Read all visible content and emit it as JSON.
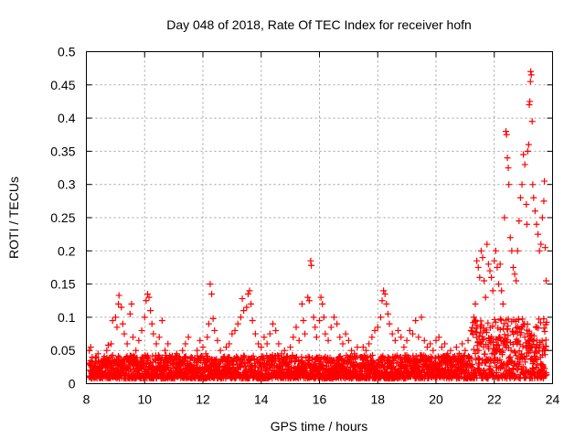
{
  "chart_data": {
    "type": "scatter",
    "title": "Day 048 of 2018, Rate Of TEC Index for receiver hofn",
    "xlabel": "GPS time / hours",
    "ylabel": "ROTI / TECUs",
    "xlim": [
      8,
      24
    ],
    "ylim": [
      0,
      0.5
    ],
    "xticks": [
      8,
      10,
      12,
      14,
      16,
      18,
      20,
      22,
      24
    ],
    "xtick_labels": [
      "8",
      "10",
      "12",
      "14",
      "16",
      "18",
      "20",
      "22",
      "24"
    ],
    "yticks": [
      0,
      0.05,
      0.1,
      0.15,
      0.2,
      0.25,
      0.3,
      0.35,
      0.4,
      0.45,
      0.5
    ],
    "ytick_labels": [
      "0",
      "0.05",
      "0.1",
      "0.15",
      "0.2",
      "0.25",
      "0.3",
      "0.35",
      "0.4",
      "0.45",
      "0.5"
    ],
    "grid": true,
    "marker": "+",
    "color": "#ff0000",
    "series": [
      {
        "name": "ROTI",
        "points": [
          [
            8.1,
            0.05
          ],
          [
            8.15,
            0.055
          ],
          [
            8.2,
            0.04
          ],
          [
            8.3,
            0.03
          ],
          [
            8.4,
            0.045
          ],
          [
            8.5,
            0.025
          ],
          [
            8.6,
            0.038
          ],
          [
            8.7,
            0.05
          ],
          [
            8.75,
            0.058
          ],
          [
            8.85,
            0.06
          ],
          [
            8.9,
            0.095
          ],
          [
            9.0,
            0.1
          ],
          [
            9.05,
            0.085
          ],
          [
            9.1,
            0.12
          ],
          [
            9.12,
            0.133
          ],
          [
            9.2,
            0.115
          ],
          [
            9.25,
            0.09
          ],
          [
            9.3,
            0.075
          ],
          [
            9.4,
            0.06
          ],
          [
            9.5,
            0.105
          ],
          [
            9.55,
            0.12
          ],
          [
            9.6,
            0.07
          ],
          [
            9.7,
            0.05
          ],
          [
            9.8,
            0.065
          ],
          [
            9.9,
            0.08
          ],
          [
            10.0,
            0.1
          ],
          [
            10.05,
            0.125
          ],
          [
            10.1,
            0.135
          ],
          [
            10.15,
            0.13
          ],
          [
            10.2,
            0.11
          ],
          [
            10.25,
            0.09
          ],
          [
            10.3,
            0.075
          ],
          [
            10.4,
            0.06
          ],
          [
            10.5,
            0.07
          ],
          [
            10.6,
            0.095
          ],
          [
            10.7,
            0.05
          ],
          [
            10.8,
            0.06
          ],
          [
            10.9,
            0.04
          ],
          [
            11.0,
            0.035
          ],
          [
            11.1,
            0.045
          ],
          [
            11.2,
            0.03
          ],
          [
            11.3,
            0.05
          ],
          [
            11.4,
            0.06
          ],
          [
            11.5,
            0.07
          ],
          [
            11.6,
            0.04
          ],
          [
            11.7,
            0.035
          ],
          [
            11.8,
            0.05
          ],
          [
            11.9,
            0.065
          ],
          [
            12.0,
            0.055
          ],
          [
            12.1,
            0.045
          ],
          [
            12.15,
            0.07
          ],
          [
            12.2,
            0.09
          ],
          [
            12.25,
            0.15
          ],
          [
            12.3,
            0.135
          ],
          [
            12.35,
            0.098
          ],
          [
            12.4,
            0.08
          ],
          [
            12.5,
            0.065
          ],
          [
            12.6,
            0.05
          ],
          [
            12.7,
            0.04
          ],
          [
            12.8,
            0.055
          ],
          [
            12.9,
            0.06
          ],
          [
            13.0,
            0.075
          ],
          [
            13.1,
            0.08
          ],
          [
            13.2,
            0.09
          ],
          [
            13.3,
            0.1
          ],
          [
            13.35,
            0.128
          ],
          [
            13.4,
            0.11
          ],
          [
            13.5,
            0.115
          ],
          [
            13.55,
            0.135
          ],
          [
            13.6,
            0.14
          ],
          [
            13.65,
            0.12
          ],
          [
            13.7,
            0.095
          ],
          [
            13.8,
            0.075
          ],
          [
            13.9,
            0.06
          ],
          [
            14.0,
            0.055
          ],
          [
            14.1,
            0.07
          ],
          [
            14.2,
            0.06
          ],
          [
            14.3,
            0.075
          ],
          [
            14.4,
            0.09
          ],
          [
            14.5,
            0.08
          ],
          [
            14.6,
            0.06
          ],
          [
            14.7,
            0.045
          ],
          [
            14.8,
            0.05
          ],
          [
            14.9,
            0.04
          ],
          [
            15.0,
            0.055
          ],
          [
            15.1,
            0.07
          ],
          [
            15.2,
            0.085
          ],
          [
            15.3,
            0.065
          ],
          [
            15.4,
            0.12
          ],
          [
            15.45,
            0.095
          ],
          [
            15.5,
            0.075
          ],
          [
            15.6,
            0.13
          ],
          [
            15.65,
            0.125
          ],
          [
            15.7,
            0.185
          ],
          [
            15.72,
            0.178
          ],
          [
            15.8,
            0.1
          ],
          [
            15.85,
            0.085
          ],
          [
            15.9,
            0.07
          ],
          [
            16.0,
            0.095
          ],
          [
            16.05,
            0.13
          ],
          [
            16.1,
            0.12
          ],
          [
            16.15,
            0.1
          ],
          [
            16.2,
            0.075
          ],
          [
            16.3,
            0.065
          ],
          [
            16.4,
            0.085
          ],
          [
            16.5,
            0.1
          ],
          [
            16.6,
            0.09
          ],
          [
            16.7,
            0.07
          ],
          [
            16.8,
            0.06
          ],
          [
            16.9,
            0.075
          ],
          [
            17.0,
            0.065
          ],
          [
            17.1,
            0.05
          ],
          [
            17.2,
            0.045
          ],
          [
            17.3,
            0.055
          ],
          [
            17.4,
            0.04
          ],
          [
            17.5,
            0.055
          ],
          [
            17.6,
            0.05
          ],
          [
            17.7,
            0.06
          ],
          [
            17.8,
            0.07
          ],
          [
            17.9,
            0.08
          ],
          [
            18.0,
            0.085
          ],
          [
            18.1,
            0.1
          ],
          [
            18.15,
            0.125
          ],
          [
            18.2,
            0.14
          ],
          [
            18.25,
            0.135
          ],
          [
            18.3,
            0.12
          ],
          [
            18.35,
            0.105
          ],
          [
            18.4,
            0.09
          ],
          [
            18.5,
            0.075
          ],
          [
            18.6,
            0.065
          ],
          [
            18.7,
            0.08
          ],
          [
            18.8,
            0.07
          ],
          [
            18.9,
            0.055
          ],
          [
            19.0,
            0.065
          ],
          [
            19.1,
            0.08
          ],
          [
            19.2,
            0.075
          ],
          [
            19.3,
            0.095
          ],
          [
            19.4,
            0.07
          ],
          [
            19.5,
            0.1
          ],
          [
            19.6,
            0.065
          ],
          [
            19.7,
            0.055
          ],
          [
            19.8,
            0.06
          ],
          [
            19.9,
            0.05
          ],
          [
            20.0,
            0.065
          ],
          [
            20.1,
            0.07
          ],
          [
            20.2,
            0.055
          ],
          [
            20.3,
            0.06
          ],
          [
            20.4,
            0.045
          ],
          [
            20.5,
            0.05
          ],
          [
            20.6,
            0.04
          ],
          [
            20.7,
            0.055
          ],
          [
            20.8,
            0.045
          ],
          [
            20.9,
            0.06
          ],
          [
            21.0,
            0.05
          ],
          [
            21.1,
            0.065
          ],
          [
            21.2,
            0.08
          ],
          [
            21.3,
            0.1
          ],
          [
            21.35,
            0.12
          ],
          [
            21.4,
            0.185
          ],
          [
            21.45,
            0.175
          ],
          [
            21.5,
            0.16
          ],
          [
            21.55,
            0.2
          ],
          [
            21.6,
            0.19
          ],
          [
            21.65,
            0.155
          ],
          [
            21.7,
            0.13
          ],
          [
            21.75,
            0.21
          ],
          [
            21.8,
            0.18
          ],
          [
            21.85,
            0.17
          ],
          [
            21.9,
            0.16
          ],
          [
            21.95,
            0.14
          ],
          [
            22.0,
            0.185
          ],
          [
            22.05,
            0.2
          ],
          [
            22.1,
            0.175
          ],
          [
            22.15,
            0.15
          ],
          [
            22.2,
            0.18
          ],
          [
            22.25,
            0.14
          ],
          [
            22.3,
            0.12
          ],
          [
            22.35,
            0.25
          ],
          [
            22.4,
            0.38
          ],
          [
            22.42,
            0.375
          ],
          [
            22.45,
            0.34
          ],
          [
            22.48,
            0.325
          ],
          [
            22.5,
            0.3
          ],
          [
            22.55,
            0.22
          ],
          [
            22.6,
            0.2
          ],
          [
            22.65,
            0.175
          ],
          [
            22.7,
            0.165
          ],
          [
            22.75,
            0.155
          ],
          [
            22.8,
            0.2
          ],
          [
            22.85,
            0.245
          ],
          [
            22.9,
            0.28
          ],
          [
            22.95,
            0.3
          ],
          [
            23.0,
            0.345
          ],
          [
            23.05,
            0.33
          ],
          [
            23.1,
            0.27
          ],
          [
            23.12,
            0.24
          ],
          [
            23.15,
            0.35
          ],
          [
            23.18,
            0.36
          ],
          [
            23.2,
            0.42
          ],
          [
            23.22,
            0.425
          ],
          [
            23.24,
            0.455
          ],
          [
            23.25,
            0.47
          ],
          [
            23.27,
            0.465
          ],
          [
            23.3,
            0.395
          ],
          [
            23.32,
            0.3
          ],
          [
            23.35,
            0.28
          ],
          [
            23.4,
            0.26
          ],
          [
            23.45,
            0.24
          ],
          [
            23.5,
            0.225
          ],
          [
            23.55,
            0.2
          ],
          [
            23.6,
            0.21
          ],
          [
            23.65,
            0.25
          ],
          [
            23.7,
            0.275
          ],
          [
            23.72,
            0.305
          ],
          [
            23.75,
            0.205
          ],
          [
            23.78,
            0.155
          ]
        ]
      }
    ]
  }
}
